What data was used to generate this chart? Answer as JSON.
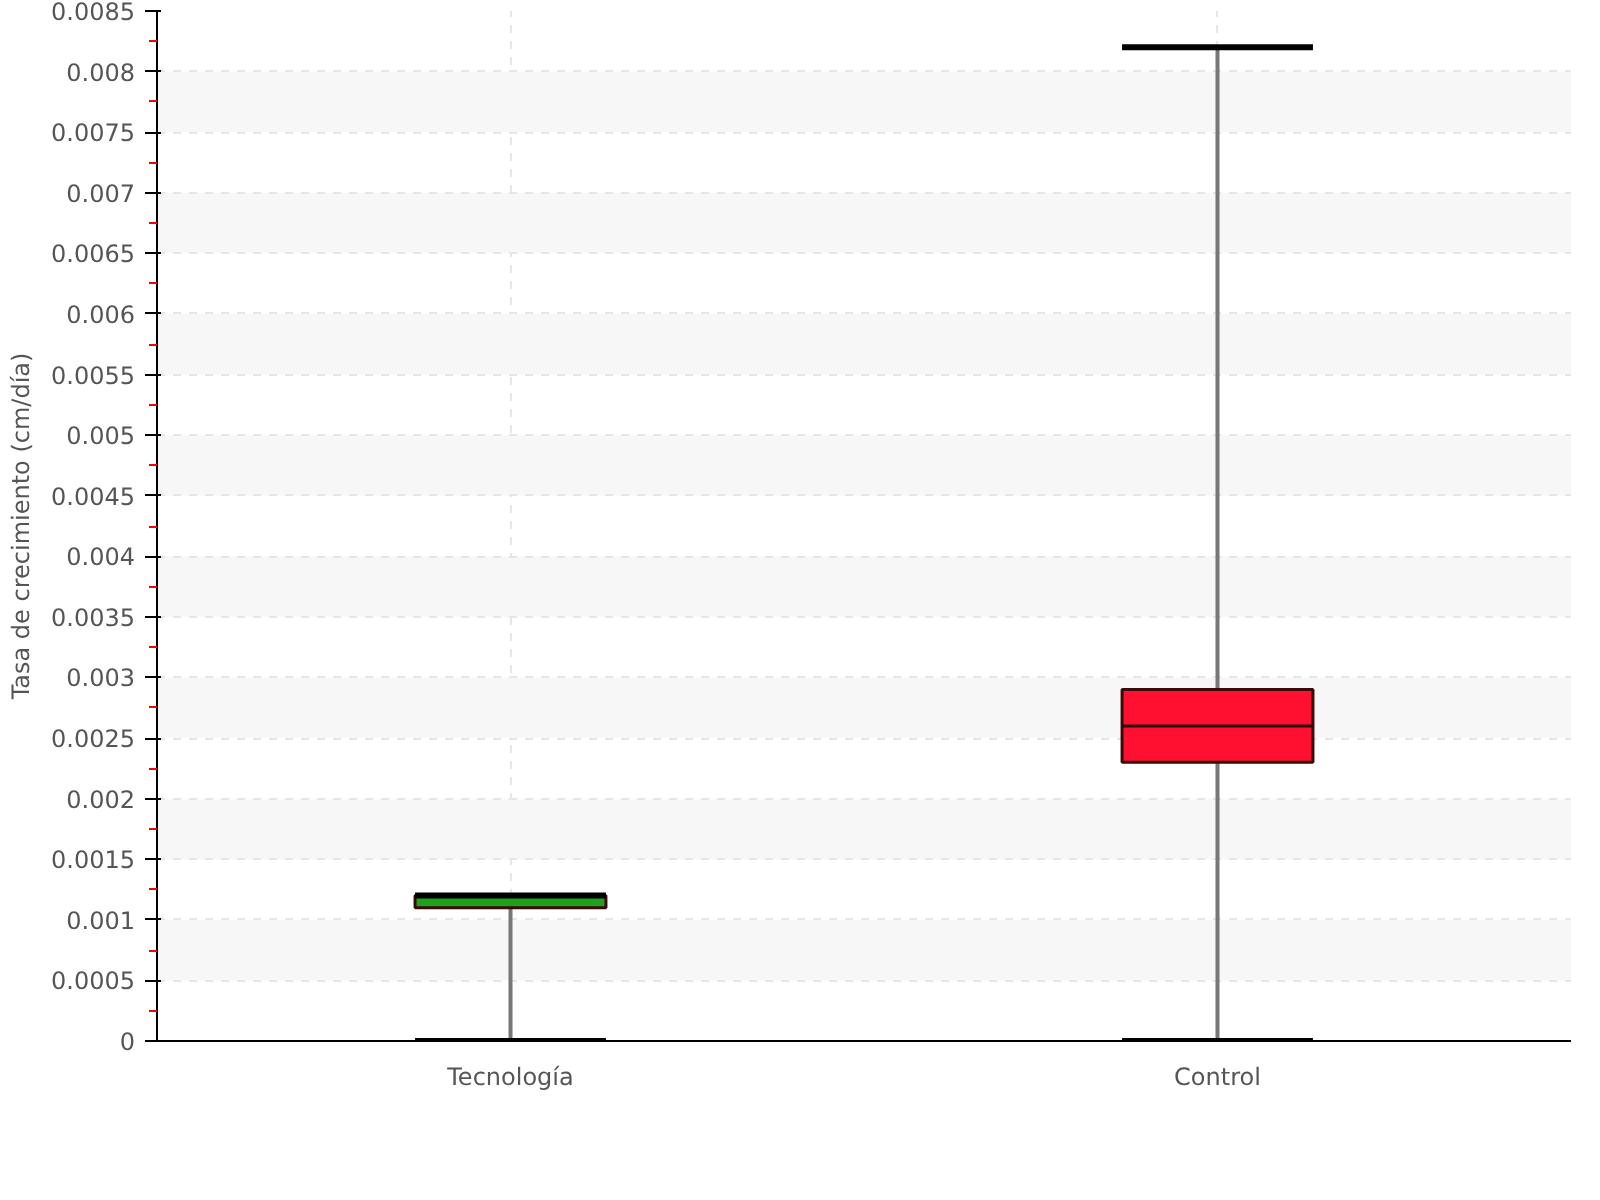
{
  "chart_data": {
    "type": "box",
    "ylabel": "Tasa de crecimiento (cm/día)",
    "categories": [
      "Tecnología",
      "Control"
    ],
    "boxes": [
      {
        "low": 0,
        "q1": 0.0011,
        "median": 0.0012,
        "q3": 0.0012,
        "high": 0.0012
      },
      {
        "low": 0,
        "q1": 0.0023,
        "median": 0.0026,
        "q3": 0.0029,
        "high": 0.0082
      }
    ],
    "colors": [
      "#1fa01f",
      "#ff1030"
    ],
    "ylim": [
      0,
      0.0085
    ],
    "yticks": [
      0,
      0.0005,
      0.001,
      0.0015,
      0.002,
      0.0025,
      0.003,
      0.0035,
      0.004,
      0.0045,
      0.005,
      0.0055,
      0.006,
      0.0065,
      0.007,
      0.0075,
      0.008,
      0.0085
    ],
    "grid": true
  }
}
